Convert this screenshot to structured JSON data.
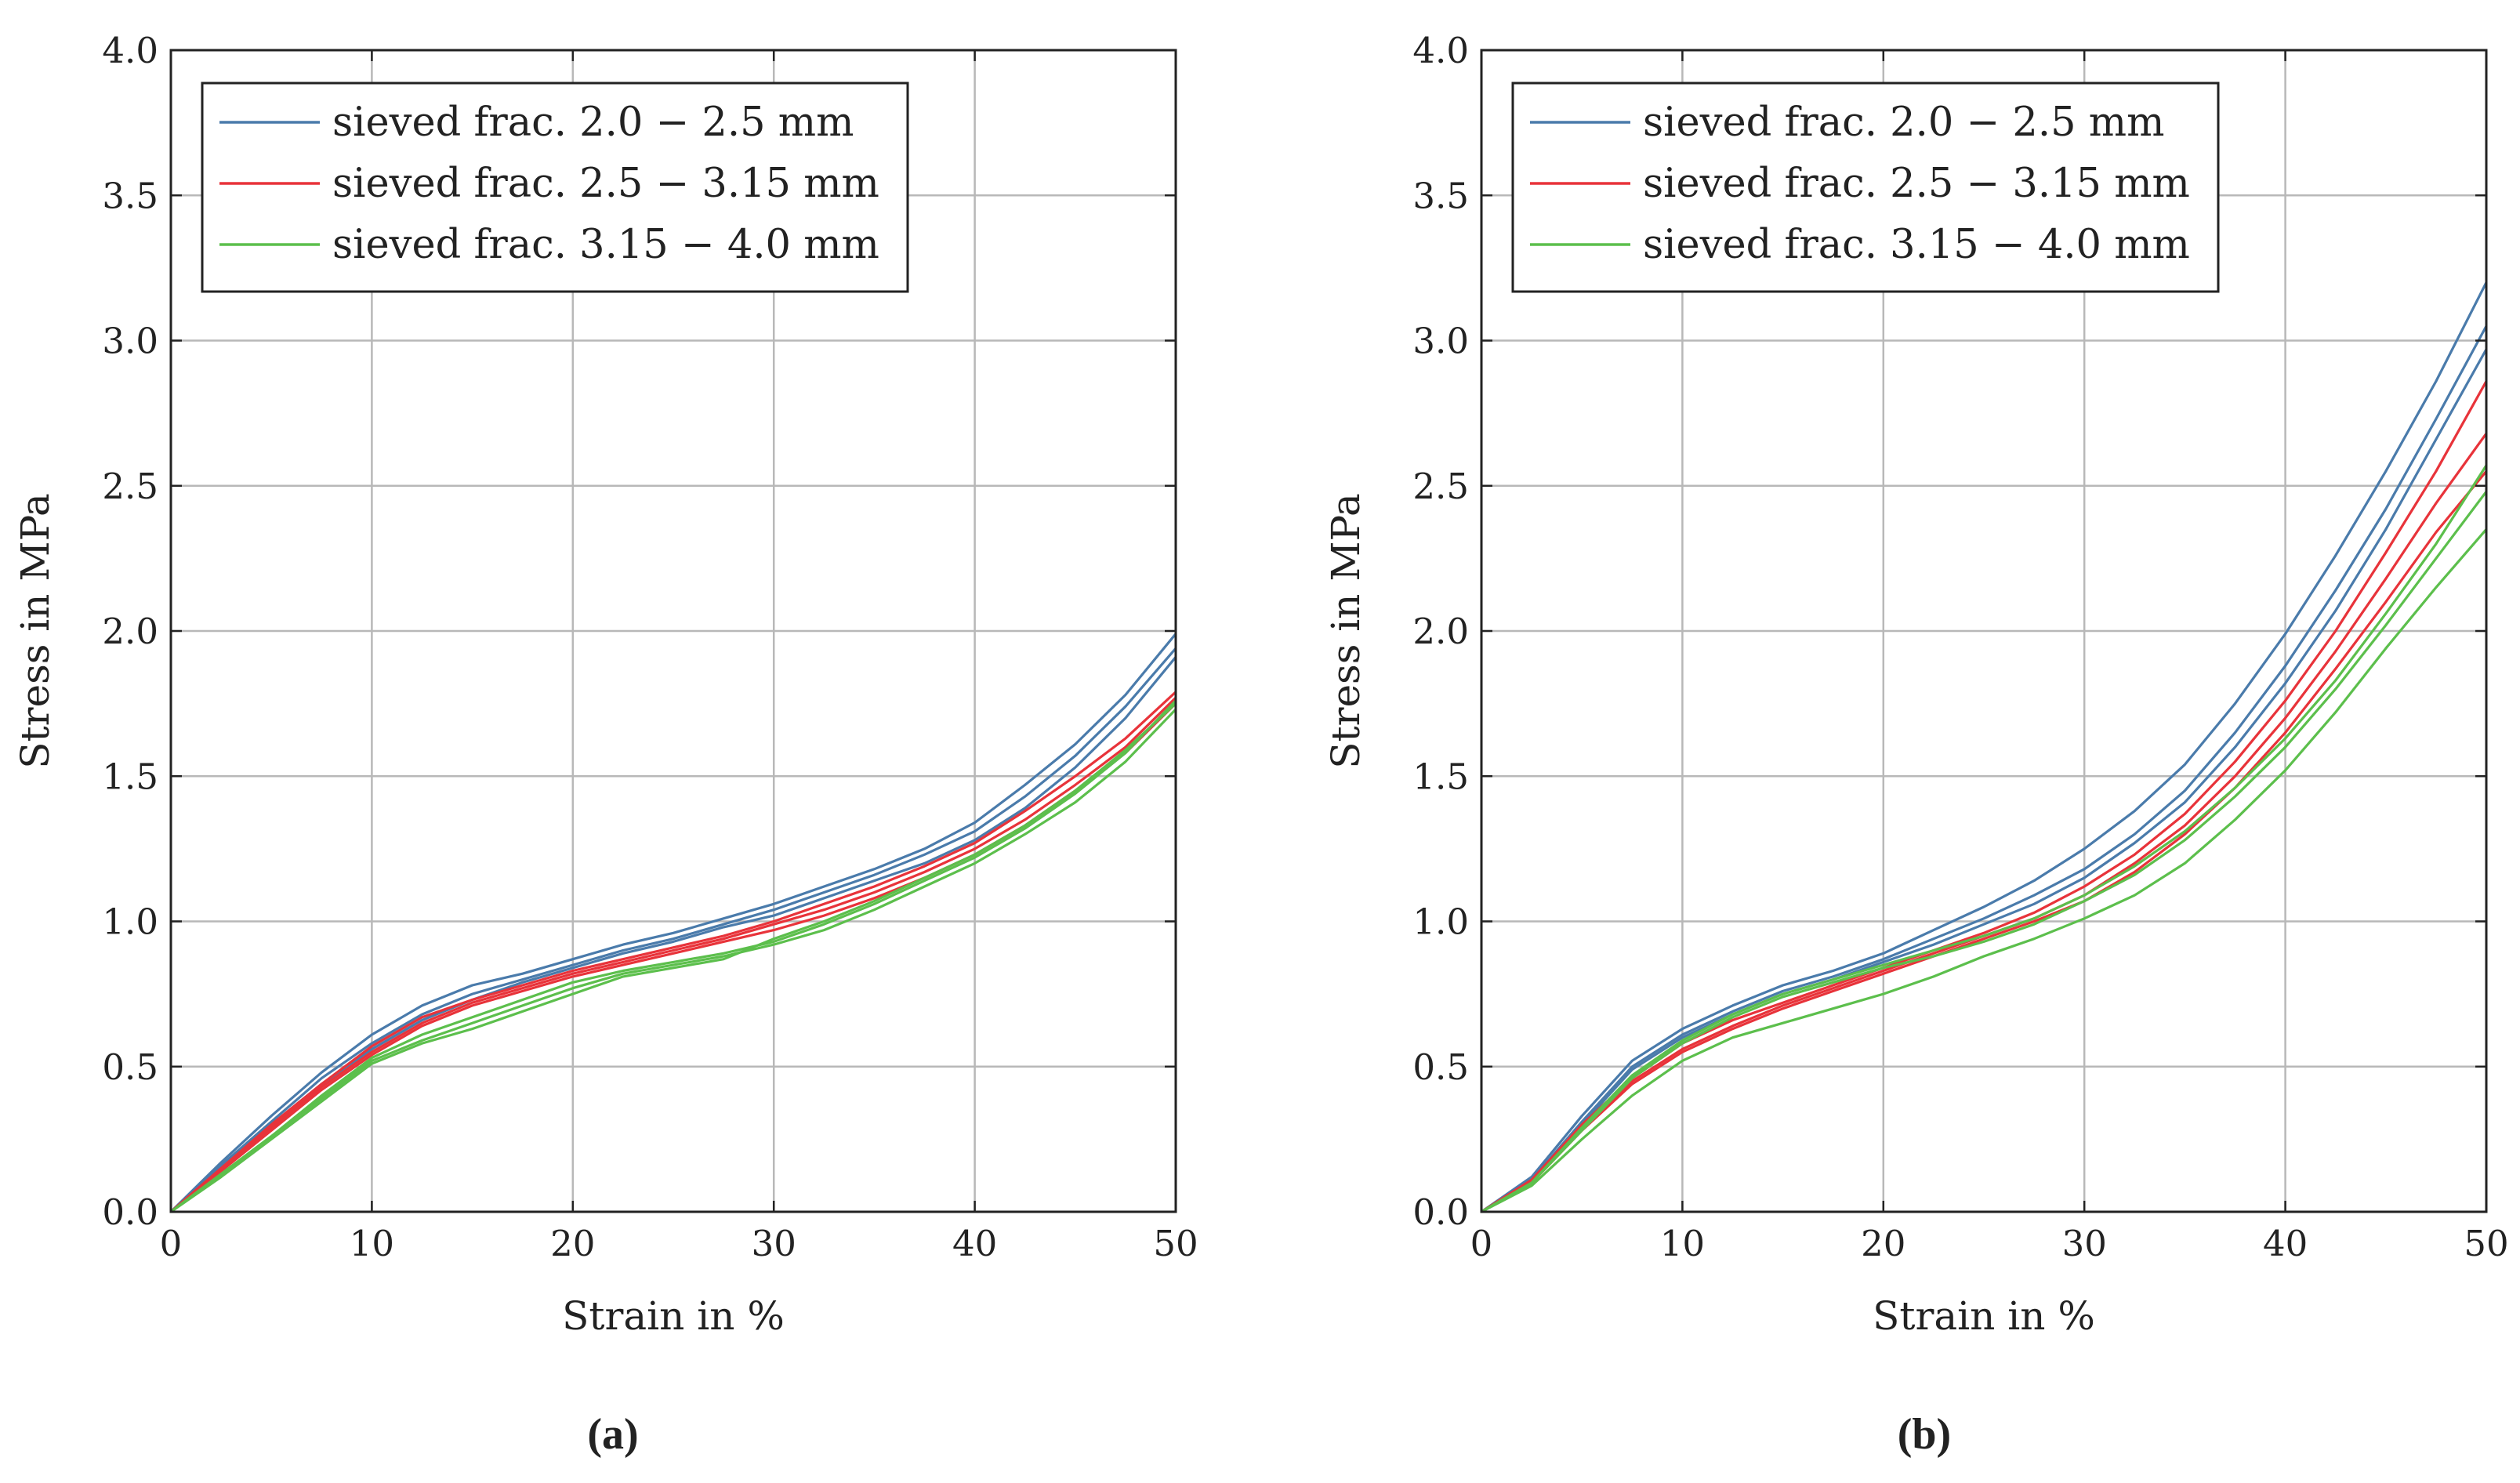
{
  "chart_data": [
    {
      "type": "line",
      "caption": "(a)",
      "xlabel": "Strain in %",
      "ylabel": "Stress in MPa",
      "xlim": [
        0,
        50
      ],
      "ylim": [
        0,
        4.0
      ],
      "xticks": [
        "0",
        "10",
        "20",
        "30",
        "40",
        "50"
      ],
      "yticks": [
        "0.0",
        "0.5",
        "1.0",
        "1.5",
        "2.0",
        "2.5",
        "3.0",
        "3.5",
        "4.0"
      ],
      "grid": true,
      "legend_position": "top-left",
      "legend": [
        {
          "label": "sieved frac. 2.0 − 2.5 mm",
          "color": "#4a7bab"
        },
        {
          "label": "sieved frac. 2.5 − 3.15 mm",
          "color": "#e8333a"
        },
        {
          "label": "sieved frac. 3.15 − 4.0 mm",
          "color": "#5cbf4c"
        }
      ],
      "x": [
        0,
        2.5,
        5,
        7.5,
        10,
        12.5,
        15,
        17.5,
        20,
        22.5,
        25,
        27.5,
        30,
        32.5,
        35,
        37.5,
        40,
        42.5,
        45,
        47.5,
        50
      ],
      "series": [
        {
          "name": "sieved frac. 2.0 − 2.5 mm",
          "group": 0,
          "values": [
            0,
            0.17,
            0.33,
            0.48,
            0.61,
            0.71,
            0.78,
            0.82,
            0.87,
            0.92,
            0.96,
            1.01,
            1.06,
            1.12,
            1.18,
            1.25,
            1.34,
            1.47,
            1.61,
            1.78,
            1.99
          ]
        },
        {
          "name": "sieved frac. 2.0 − 2.5 mm",
          "group": 0,
          "values": [
            0,
            0.16,
            0.31,
            0.46,
            0.58,
            0.68,
            0.75,
            0.8,
            0.85,
            0.9,
            0.94,
            0.99,
            1.04,
            1.1,
            1.16,
            1.23,
            1.31,
            1.43,
            1.57,
            1.74,
            1.94
          ]
        },
        {
          "name": "sieved frac. 2.0 − 2.5 mm",
          "group": 0,
          "values": [
            0,
            0.15,
            0.3,
            0.44,
            0.56,
            0.66,
            0.73,
            0.79,
            0.84,
            0.89,
            0.93,
            0.98,
            1.02,
            1.08,
            1.14,
            1.2,
            1.28,
            1.39,
            1.53,
            1.7,
            1.91
          ]
        },
        {
          "name": "sieved frac. 2.5 − 3.15 mm",
          "group": 1,
          "values": [
            0,
            0.15,
            0.3,
            0.44,
            0.57,
            0.67,
            0.73,
            0.78,
            0.83,
            0.87,
            0.91,
            0.95,
            1.0,
            1.06,
            1.12,
            1.19,
            1.27,
            1.38,
            1.5,
            1.63,
            1.79
          ]
        },
        {
          "name": "sieved frac. 2.5 − 3.15 mm",
          "group": 1,
          "values": [
            0,
            0.14,
            0.29,
            0.43,
            0.55,
            0.65,
            0.72,
            0.77,
            0.82,
            0.86,
            0.9,
            0.94,
            0.99,
            1.04,
            1.1,
            1.17,
            1.25,
            1.35,
            1.47,
            1.6,
            1.77
          ]
        },
        {
          "name": "sieved frac. 2.5 − 3.15 mm",
          "group": 1,
          "values": [
            0,
            0.14,
            0.28,
            0.42,
            0.54,
            0.64,
            0.71,
            0.76,
            0.81,
            0.85,
            0.89,
            0.93,
            0.97,
            1.02,
            1.08,
            1.15,
            1.23,
            1.33,
            1.45,
            1.58,
            1.75
          ]
        },
        {
          "name": "sieved frac. 3.15 − 4.0 mm",
          "group": 2,
          "values": [
            0,
            0.13,
            0.26,
            0.4,
            0.53,
            0.61,
            0.67,
            0.73,
            0.79,
            0.83,
            0.86,
            0.89,
            0.93,
            0.99,
            1.06,
            1.14,
            1.22,
            1.32,
            1.44,
            1.58,
            1.76
          ]
        },
        {
          "name": "sieved frac. 3.15 − 4.0 mm",
          "group": 2,
          "values": [
            0,
            0.13,
            0.26,
            0.39,
            0.52,
            0.59,
            0.65,
            0.71,
            0.77,
            0.82,
            0.85,
            0.88,
            0.92,
            0.97,
            1.04,
            1.12,
            1.2,
            1.3,
            1.41,
            1.55,
            1.73
          ]
        },
        {
          "name": "sieved frac. 3.15 − 4.0 mm",
          "group": 2,
          "values": [
            0,
            0.12,
            0.25,
            0.38,
            0.51,
            0.58,
            0.63,
            0.69,
            0.75,
            0.81,
            0.84,
            0.87,
            0.94,
            1.0,
            1.07,
            1.15,
            1.23,
            1.33,
            1.45,
            1.59,
            1.75
          ]
        }
      ]
    },
    {
      "type": "line",
      "caption": "(b)",
      "xlabel": "Strain in %",
      "ylabel": "Stress in MPa",
      "xlim": [
        0,
        50
      ],
      "ylim": [
        0,
        4.0
      ],
      "xticks": [
        "0",
        "10",
        "20",
        "30",
        "40",
        "50"
      ],
      "yticks": [
        "0.0",
        "0.5",
        "1.0",
        "1.5",
        "2.0",
        "2.5",
        "3.0",
        "3.5",
        "4.0"
      ],
      "grid": true,
      "legend_position": "top-left",
      "legend": [
        {
          "label": "sieved frac. 2.0 − 2.5 mm",
          "color": "#4a7bab"
        },
        {
          "label": "sieved frac. 2.5 − 3.15 mm",
          "color": "#e8333a"
        },
        {
          "label": "sieved frac. 3.15 − 4.0 mm",
          "color": "#5cbf4c"
        }
      ],
      "x": [
        0,
        2.5,
        5,
        7.5,
        10,
        12.5,
        15,
        17.5,
        20,
        22.5,
        25,
        27.5,
        30,
        32.5,
        35,
        37.5,
        40,
        42.5,
        45,
        47.5,
        50
      ],
      "series": [
        {
          "name": "sieved frac. 2.0 − 2.5 mm",
          "group": 0,
          "values": [
            0,
            0.12,
            0.33,
            0.52,
            0.63,
            0.71,
            0.78,
            0.83,
            0.89,
            0.97,
            1.05,
            1.14,
            1.25,
            1.38,
            1.54,
            1.75,
            1.99,
            2.26,
            2.55,
            2.86,
            3.2
          ]
        },
        {
          "name": "sieved frac. 2.0 − 2.5 mm",
          "group": 0,
          "values": [
            0,
            0.11,
            0.31,
            0.5,
            0.61,
            0.69,
            0.76,
            0.81,
            0.87,
            0.94,
            1.01,
            1.09,
            1.18,
            1.3,
            1.45,
            1.65,
            1.88,
            2.14,
            2.42,
            2.73,
            3.05
          ]
        },
        {
          "name": "sieved frac. 2.0 − 2.5 mm",
          "group": 0,
          "values": [
            0,
            0.11,
            0.3,
            0.49,
            0.6,
            0.68,
            0.75,
            0.8,
            0.86,
            0.92,
            0.99,
            1.06,
            1.15,
            1.27,
            1.41,
            1.6,
            1.82,
            2.07,
            2.35,
            2.66,
            2.97
          ]
        },
        {
          "name": "sieved frac. 2.5 − 3.15 mm",
          "group": 1,
          "values": [
            0,
            0.11,
            0.3,
            0.46,
            0.58,
            0.66,
            0.72,
            0.78,
            0.84,
            0.9,
            0.96,
            1.03,
            1.12,
            1.23,
            1.37,
            1.55,
            1.76,
            2.0,
            2.27,
            2.55,
            2.86
          ]
        },
        {
          "name": "sieved frac. 2.5 − 3.15 mm",
          "group": 1,
          "values": [
            0,
            0.1,
            0.29,
            0.45,
            0.56,
            0.64,
            0.71,
            0.77,
            0.83,
            0.89,
            0.95,
            1.01,
            1.09,
            1.2,
            1.33,
            1.5,
            1.7,
            1.93,
            2.18,
            2.44,
            2.68
          ]
        },
        {
          "name": "sieved frac. 2.5 − 3.15 mm",
          "group": 1,
          "values": [
            0,
            0.1,
            0.28,
            0.44,
            0.55,
            0.63,
            0.7,
            0.76,
            0.82,
            0.88,
            0.94,
            1.0,
            1.07,
            1.17,
            1.3,
            1.46,
            1.65,
            1.87,
            2.1,
            2.34,
            2.55
          ]
        },
        {
          "name": "sieved frac. 3.15 − 4.0 mm",
          "group": 2,
          "values": [
            0,
            0.1,
            0.29,
            0.47,
            0.59,
            0.68,
            0.75,
            0.8,
            0.85,
            0.9,
            0.95,
            1.01,
            1.09,
            1.19,
            1.31,
            1.46,
            1.63,
            1.83,
            2.06,
            2.3,
            2.57
          ]
        },
        {
          "name": "sieved frac. 3.15 − 4.0 mm",
          "group": 2,
          "values": [
            0,
            0.1,
            0.28,
            0.46,
            0.58,
            0.67,
            0.74,
            0.79,
            0.84,
            0.88,
            0.93,
            0.99,
            1.07,
            1.16,
            1.28,
            1.43,
            1.6,
            1.8,
            2.02,
            2.25,
            2.48
          ]
        },
        {
          "name": "sieved frac. 3.15 − 4.0 mm",
          "group": 2,
          "values": [
            0,
            0.09,
            0.25,
            0.4,
            0.52,
            0.6,
            0.65,
            0.7,
            0.75,
            0.81,
            0.88,
            0.94,
            1.01,
            1.09,
            1.2,
            1.35,
            1.52,
            1.72,
            1.94,
            2.15,
            2.35
          ]
        }
      ]
    }
  ]
}
